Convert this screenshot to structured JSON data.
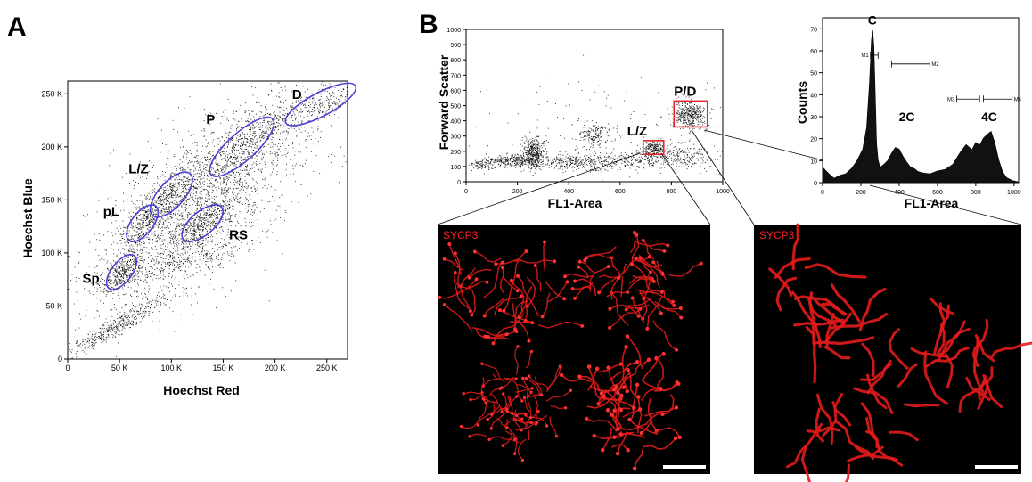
{
  "panel_labels": {
    "a": "A",
    "b": "B"
  },
  "image_labels": {
    "stain_left": "SYCP3",
    "stain_right": "SYCP3"
  },
  "chart_data": [
    {
      "id": "hoechst-scatter",
      "type": "scatter",
      "xlabel": "Hoechst Red",
      "ylabel": "Hoechst Blue",
      "xlim": [
        0,
        270000
      ],
      "ylim": [
        0,
        262000
      ],
      "xticks": [
        0,
        50000,
        100000,
        150000,
        200000,
        250000
      ],
      "xtick_labels": [
        "0",
        "50 K",
        "100 K",
        "150 K",
        "200 K",
        "250 K"
      ],
      "yticks": [
        0,
        50000,
        100000,
        150000,
        200000,
        250000
      ],
      "ytick_labels": [
        "0",
        "50 K",
        "100 K",
        "150 K",
        "200 K",
        "250 K"
      ],
      "gates": [
        {
          "label": "Sp",
          "cx": 52000,
          "cy": 82000,
          "rx": 20000,
          "ry": 9500,
          "angle": 52
        },
        {
          "label": "pL",
          "cx": 72000,
          "cy": 128000,
          "rx": 21000,
          "ry": 10000,
          "angle": 52
        },
        {
          "label": "L/Z",
          "cx": 100000,
          "cy": 155000,
          "rx": 27000,
          "ry": 12000,
          "angle": 48
        },
        {
          "label": "RS",
          "cx": 130000,
          "cy": 128000,
          "rx": 24000,
          "ry": 11000,
          "angle": 40
        },
        {
          "label": "P",
          "cx": 168000,
          "cy": 200000,
          "rx": 40000,
          "ry": 13000,
          "angle": 42
        },
        {
          "label": "D",
          "cx": 244000,
          "cy": 240000,
          "rx": 38000,
          "ry": 11000,
          "angle": 28
        }
      ],
      "gate_color": "#4a3fd6"
    },
    {
      "id": "fl1-scatter",
      "type": "scatter",
      "xlabel": "FL1-Area",
      "ylabel": "Forward Scatter",
      "xlim": [
        0,
        1000
      ],
      "ylim": [
        0,
        1000
      ],
      "xticks": [
        0,
        200,
        400,
        600,
        800,
        1000
      ],
      "xtick_labels": [
        "0",
        "200",
        "400",
        "600",
        "800",
        "1000"
      ],
      "yticks": [
        0,
        100,
        200,
        300,
        400,
        500,
        600,
        700,
        800,
        900,
        1000
      ],
      "ytick_labels": [
        "0",
        "100",
        "200",
        "300",
        "400",
        "500",
        "600",
        "700",
        "800",
        "900",
        "1000"
      ],
      "gates": [
        {
          "label": "L/Z",
          "x0": 690,
          "x1": 770,
          "y0": 180,
          "y1": 270
        },
        {
          "label": "P/D",
          "x0": 810,
          "x1": 940,
          "y0": 360,
          "y1": 530
        }
      ],
      "gate_color": "#e8232a"
    },
    {
      "id": "fl1-histogram",
      "type": "area",
      "xlabel": "FL1-Area",
      "ylabel": "Counts",
      "xlim": [
        0,
        1024
      ],
      "ylim": [
        0,
        75
      ],
      "xticks": [
        0,
        200,
        400,
        600,
        800,
        1000
      ],
      "xtick_labels": [
        "0",
        "200",
        "400",
        "600",
        "800",
        "1000"
      ],
      "yticks": [
        0,
        10,
        20,
        30,
        40,
        50,
        60,
        70
      ],
      "ytick_labels": [
        "0",
        "10",
        "20",
        "30",
        "40",
        "50",
        "60",
        "70"
      ],
      "peak_labels": [
        {
          "text": "C",
          "x": 260,
          "y": 72
        },
        {
          "text": "2C",
          "x": 440,
          "y": 28
        },
        {
          "text": "4C",
          "x": 870,
          "y": 28
        }
      ],
      "markers": [
        {
          "label": "M1",
          "x0": 250,
          "x1": 290,
          "y": 58
        },
        {
          "label": "M2",
          "x0": 360,
          "x1": 560,
          "y": 54
        },
        {
          "label": "M3",
          "x0": 700,
          "x1": 820,
          "y": 38
        },
        {
          "label": "M4",
          "x0": 840,
          "x1": 990,
          "y": 38
        }
      ],
      "x": [
        0,
        30,
        60,
        90,
        120,
        150,
        180,
        210,
        230,
        245,
        255,
        262,
        268,
        275,
        282,
        290,
        300,
        320,
        340,
        360,
        380,
        400,
        420,
        440,
        460,
        480,
        500,
        530,
        560,
        600,
        640,
        680,
        720,
        750,
        780,
        800,
        820,
        840,
        860,
        880,
        900,
        920,
        940,
        960,
        990,
        1024
      ],
      "y": [
        7,
        4,
        2,
        3,
        4,
        6,
        10,
        15,
        25,
        45,
        65,
        69,
        62,
        40,
        18,
        10,
        7,
        8,
        10,
        13,
        16,
        15,
        12,
        9,
        7,
        6,
        5,
        4,
        4,
        5,
        6,
        8,
        14,
        17,
        15,
        18,
        17,
        20,
        22,
        23,
        18,
        10,
        5,
        2,
        1,
        0
      ]
    }
  ]
}
